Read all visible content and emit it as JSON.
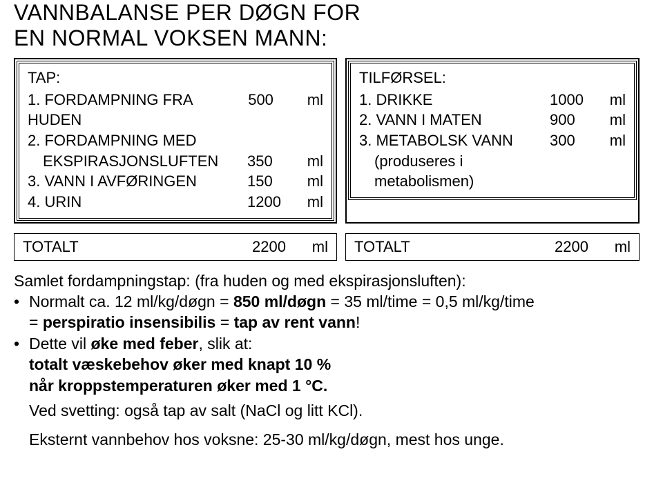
{
  "title_line1": "VANNBALANSE PER DØGN FOR",
  "title_line2": "EN NORMAL VOKSEN MANN:",
  "left": {
    "header": "TAP:",
    "rows": [
      {
        "label": "1. FORDAMPNING FRA HUDEN",
        "num": "500",
        "unit": "ml"
      },
      {
        "label": "2. FORDAMPNING MED",
        "num": "",
        "unit": ""
      },
      {
        "label_indent": "EKSPIRASJONSLUFTEN",
        "num": "350",
        "unit": "ml"
      },
      {
        "label": "3. VANN I AVFØRINGEN",
        "num": "150",
        "unit": "ml"
      },
      {
        "label": "4. URIN",
        "num": "1200",
        "unit": "ml"
      }
    ]
  },
  "right": {
    "header": "TILFØRSEL:",
    "rows": [
      {
        "label": "1. DRIKKE",
        "num": "1000",
        "unit": "ml"
      },
      {
        "label": "2. VANN I MATEN",
        "num": "900",
        "unit": "ml"
      },
      {
        "label": "3. METABOLSK VANN",
        "num": "300",
        "unit": "ml"
      },
      {
        "sub": "(produseres i"
      },
      {
        "sub": "metabolismen)"
      }
    ]
  },
  "totals": {
    "left_label": "TOTALT",
    "left_num": "2200",
    "left_unit": "ml",
    "right_label": "TOTALT",
    "right_num": "2200",
    "right_unit": "ml"
  },
  "para1": "Samlet fordampningstap: (fra huden og med ekspirasjonsluften):",
  "b1a": "Normalt ca. 12 ml/kg/døgn = ",
  "b1b": "850 ml/døgn",
  "b1c": " = 35 ml/time = 0,5 ml/kg/time",
  "b1d": "= ",
  "b1e": "perspiratio insensibilis",
  "b1f": " = ",
  "b1g": "tap av rent vann",
  "b1h": "!",
  "b2a": "Dette vil  ",
  "b2b": "øke med feber",
  "b2c": ", slik at:",
  "b2d": "totalt væskebehov øker med knapt 10 %",
  "b2e": "når kroppstemperaturen øker med 1 °C.",
  "b2f": "Ved svetting: også tap av salt (NaCl og litt KCl).",
  "last": "Eksternt vannbehov hos voksne: 25-30 ml/kg/døgn, mest hos unge."
}
